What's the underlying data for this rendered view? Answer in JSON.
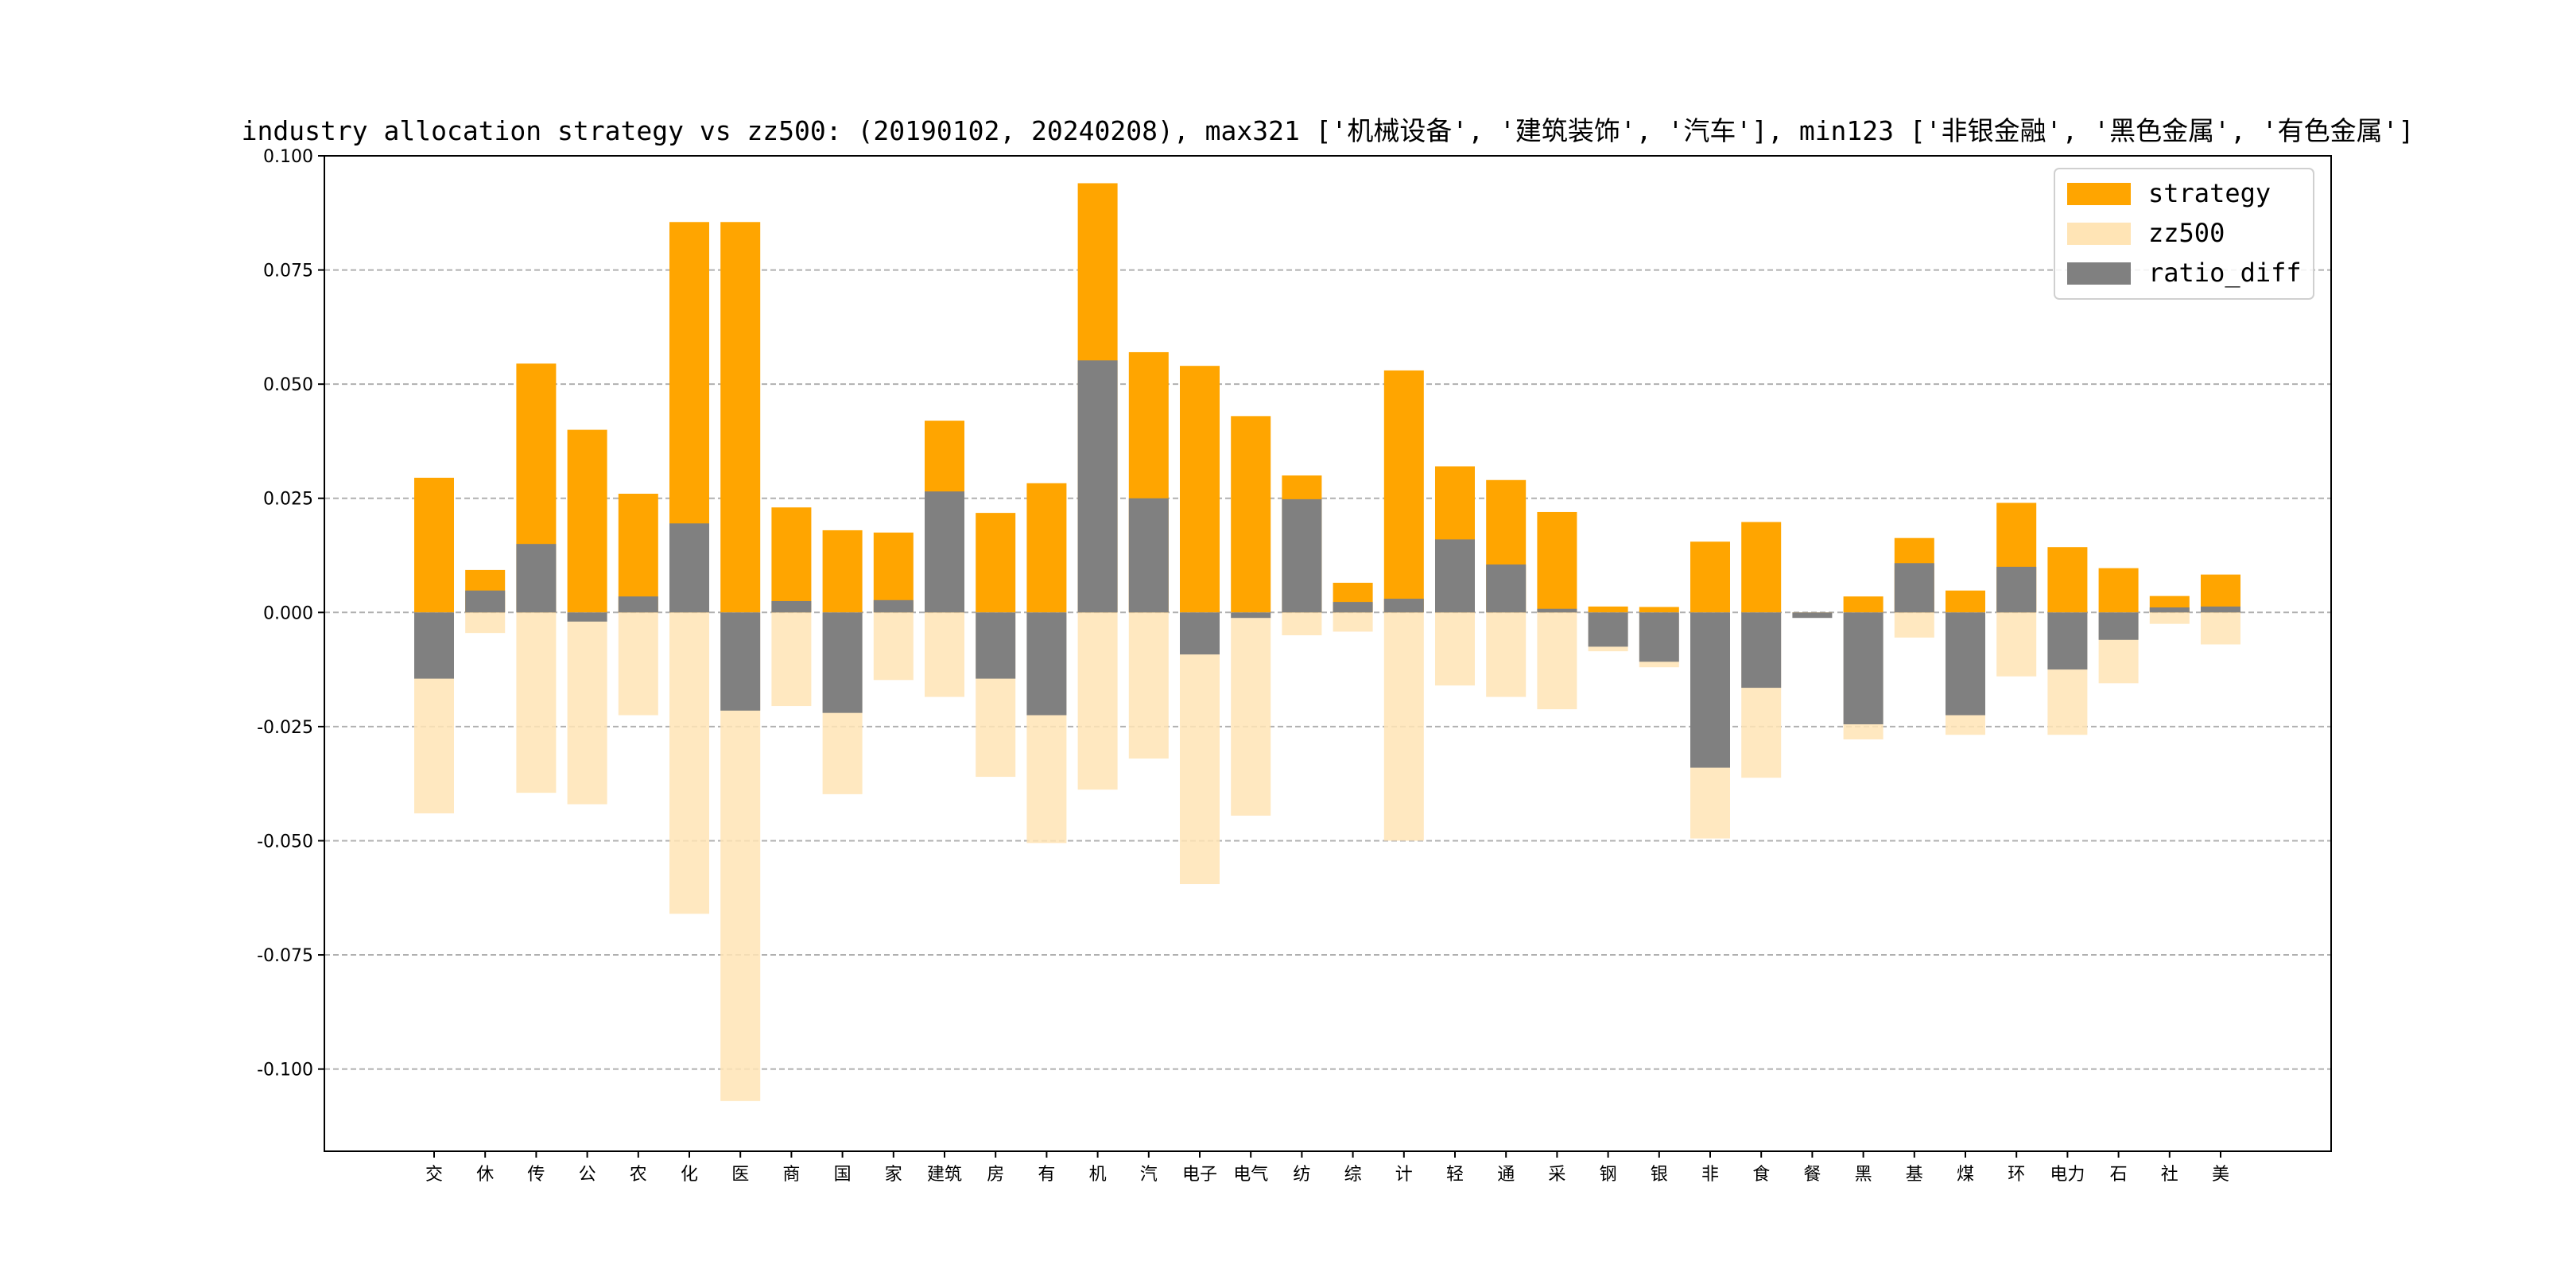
{
  "chart_data": {
    "type": "bar",
    "title": "industry allocation strategy vs zz500: (20190102, 20240208), max321 ['机械设备', '建筑装饰', '汽车'], min123 ['非银金融', '黑色金属', '有色金属']",
    "xlabel": "",
    "ylabel": "",
    "ylim": [
      -0.118,
      0.1
    ],
    "yticks": [
      0.1,
      0.075,
      0.05,
      0.025,
      0.0,
      -0.025,
      -0.05,
      -0.075,
      -0.1
    ],
    "ytick_labels": [
      "0.100",
      "0.075",
      "0.050",
      "0.025",
      "0.000",
      "-0.025",
      "-0.050",
      "-0.075",
      "-0.100"
    ],
    "grid": true,
    "legend_position": "top-right",
    "categories": [
      "交",
      "休",
      "传",
      "公",
      "农",
      "化",
      "医",
      "商",
      "国",
      "家",
      "建筑",
      "房",
      "有",
      "机",
      "汽",
      "电子",
      "电气",
      "纺",
      "综",
      "计",
      "轻",
      "通",
      "采",
      "钢",
      "银",
      "非",
      "食",
      "餐",
      "黑",
      "基",
      "煤",
      "环",
      "电力",
      "石",
      "社",
      "美"
    ],
    "series": [
      {
        "name": "strategy",
        "color": "#FFA500",
        "values": [
          0.0295,
          0.0093,
          0.0545,
          0.04,
          0.026,
          0.0855,
          0.0855,
          0.023,
          0.018,
          0.0175,
          0.042,
          0.0218,
          0.0283,
          0.094,
          0.057,
          0.054,
          0.043,
          0.03,
          0.0065,
          0.053,
          0.032,
          0.029,
          0.022,
          0.0013,
          0.0012,
          0.0155,
          0.0198,
          0.0,
          0.0035,
          0.0163,
          0.0048,
          0.024,
          0.0143,
          0.0097,
          0.0036,
          0.0083
        ]
      },
      {
        "name": "zz500",
        "color": "#FFE4B5",
        "values": [
          -0.044,
          -0.0045,
          -0.0395,
          -0.042,
          -0.0225,
          -0.066,
          -0.107,
          -0.0205,
          -0.0398,
          -0.0148,
          -0.0185,
          -0.036,
          -0.0505,
          -0.0388,
          -0.032,
          -0.0595,
          -0.0445,
          -0.005,
          -0.0042,
          -0.05,
          -0.016,
          -0.0185,
          -0.0212,
          -0.0085,
          -0.012,
          -0.0495,
          -0.0362,
          -0.0005,
          -0.0278,
          -0.0055,
          -0.0268,
          -0.014,
          -0.0268,
          -0.0155,
          -0.0025,
          -0.007
        ]
      },
      {
        "name": "ratio_diff",
        "color": "#808080",
        "values": [
          -0.0145,
          0.0048,
          0.015,
          -0.002,
          0.0035,
          0.0195,
          -0.0215,
          0.0025,
          -0.022,
          0.0027,
          0.0265,
          -0.0145,
          -0.0225,
          0.0552,
          0.025,
          -0.0092,
          -0.0012,
          0.0248,
          0.0023,
          0.003,
          0.016,
          0.0105,
          0.0008,
          -0.0075,
          -0.0108,
          -0.034,
          -0.0165,
          -0.0012,
          -0.0245,
          0.0108,
          -0.0225,
          0.01,
          -0.0125,
          -0.006,
          0.0011,
          0.0013
        ]
      }
    ]
  }
}
